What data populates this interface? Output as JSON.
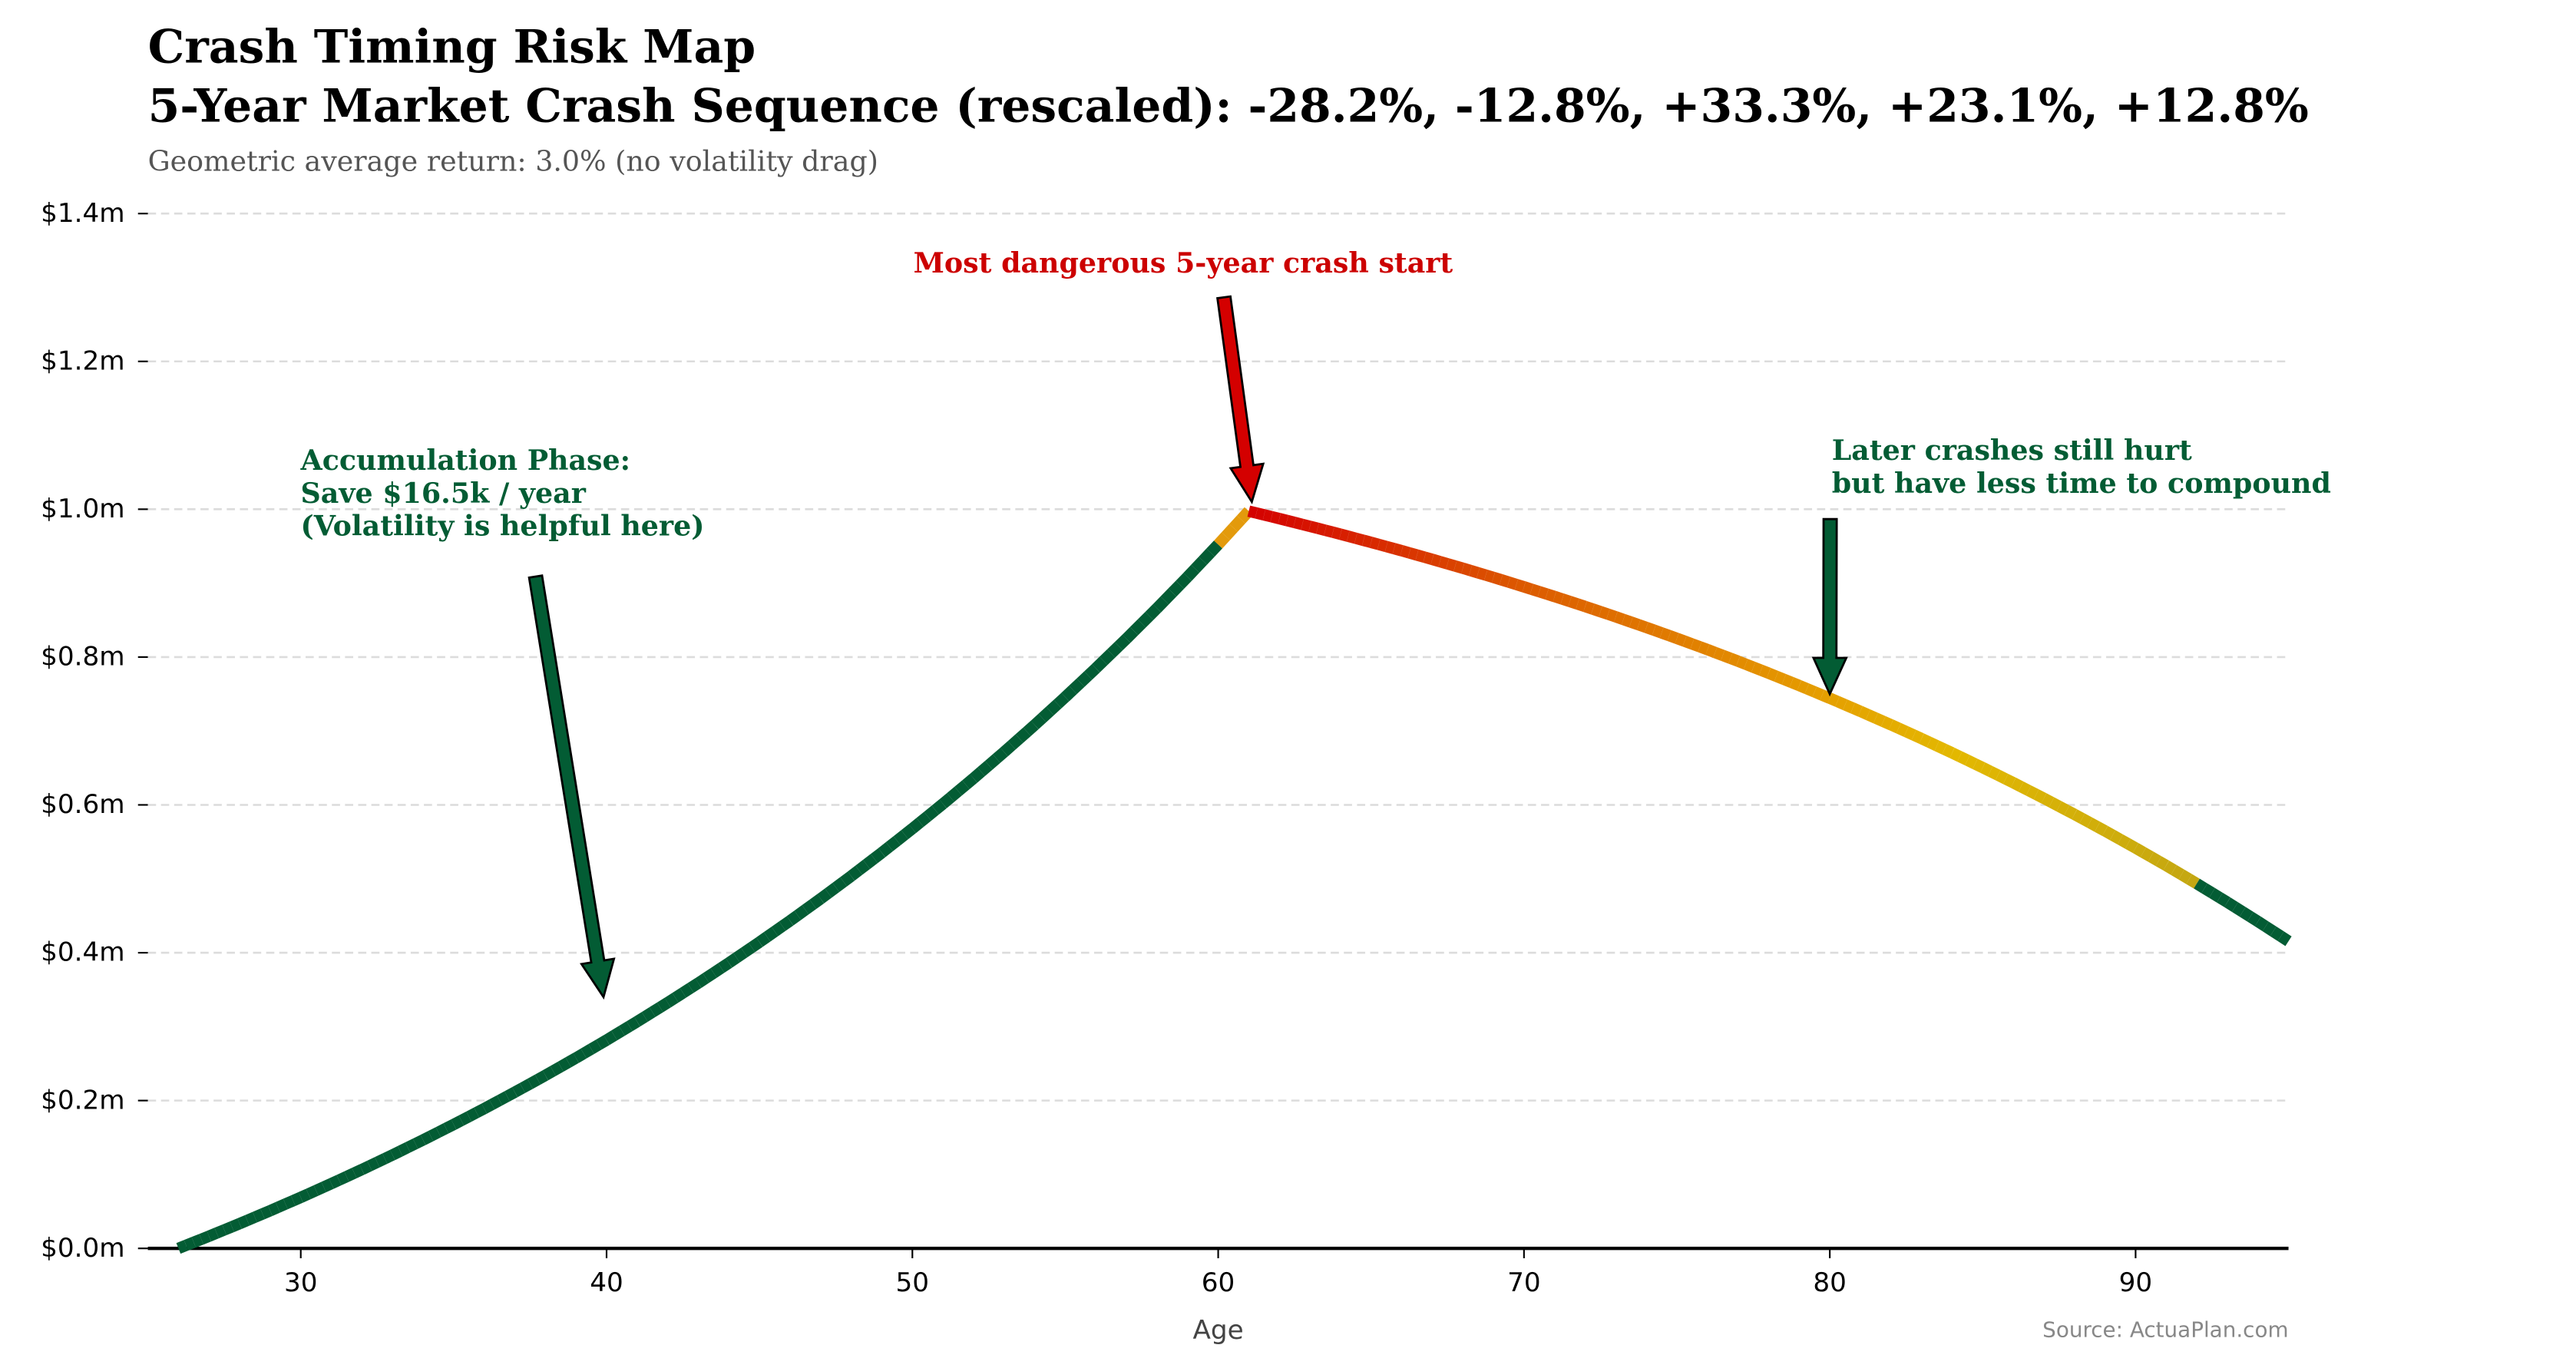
{
  "chart_data": {
    "type": "line",
    "title": "Crash Timing Risk Map",
    "subtitle": "5-Year Market Crash Sequence (rescaled): -28.2%, -12.8%, +33.3%, +23.1%, +12.8%",
    "note": "Geometric average return: 3.0% (no volatility drag)",
    "xlabel": "Age",
    "ylabel": "",
    "xlim": [
      25,
      95
    ],
    "ylim": [
      0,
      1.4
    ],
    "x_ticks": [
      30,
      40,
      50,
      60,
      70,
      80,
      90
    ],
    "y_ticks": [
      0,
      0.2,
      0.4,
      0.6,
      0.8,
      1.0,
      1.2,
      1.4
    ],
    "y_tick_labels": [
      "$0.0m",
      "$0.2m",
      "$0.4m",
      "$0.6m",
      "$0.8m",
      "$1.0m",
      "$1.2m",
      "$1.4m"
    ],
    "grid": "horizontal dashed",
    "source": "Source: ActuaPlan.com",
    "x": [
      26,
      27,
      28,
      29,
      30,
      31,
      32,
      33,
      34,
      35,
      36,
      37,
      38,
      39,
      40,
      41,
      42,
      43,
      44,
      45,
      46,
      47,
      48,
      49,
      50,
      51,
      52,
      53,
      54,
      55,
      56,
      57,
      58,
      59,
      60,
      61,
      62,
      63,
      64,
      65,
      66,
      67,
      68,
      69,
      70,
      71,
      72,
      73,
      74,
      75,
      76,
      77,
      78,
      79,
      80,
      81,
      82,
      83,
      84,
      85,
      86,
      87,
      88,
      89,
      90,
      91,
      92,
      93,
      94,
      95
    ],
    "y": [
      0,
      0.0165,
      0.0335,
      0.051,
      0.069,
      0.0876,
      0.1067,
      0.1264,
      0.1467,
      0.1676,
      0.1891,
      0.2113,
      0.2341,
      0.2576,
      0.2818,
      0.3068,
      0.3325,
      0.3589,
      0.3862,
      0.4143,
      0.4432,
      0.473,
      0.5037,
      0.5353,
      0.5679,
      0.6014,
      0.6359,
      0.6715,
      0.7081,
      0.7459,
      0.7848,
      0.8248,
      0.866,
      0.9085,
      0.9523,
      0.9974,
      0.9873,
      0.9769,
      0.9662,
      0.9552,
      0.9439,
      0.9322,
      0.9202,
      0.9078,
      0.895,
      0.8819,
      0.8684,
      0.8545,
      0.8401,
      0.8253,
      0.8101,
      0.7944,
      0.7782,
      0.7615,
      0.7443,
      0.7266,
      0.7084,
      0.6897,
      0.6704,
      0.6505,
      0.63,
      0.6089,
      0.5872,
      0.5648,
      0.5417,
      0.518,
      0.4935,
      0.4683,
      0.4423,
      0.4156
    ],
    "risk_color_stops": [
      {
        "age": 26,
        "color": "#035c34"
      },
      {
        "age": 60,
        "color": "#035c34"
      },
      {
        "age": 60.01,
        "color": "#e39a0c"
      },
      {
        "age": 61,
        "color": "#e39a0c"
      },
      {
        "age": 61.01,
        "color": "#d40000"
      },
      {
        "age": 70,
        "color": "#dc5a00"
      },
      {
        "age": 80,
        "color": "#e5a000"
      },
      {
        "age": 84,
        "color": "#e3b800"
      },
      {
        "age": 92,
        "color": "#c4a712"
      },
      {
        "age": 92.01,
        "color": "#035c34"
      },
      {
        "age": 95,
        "color": "#035c34"
      }
    ],
    "annotations": [
      {
        "lines": [
          "Accumulation Phase:",
          "Save $16.5k / year",
          "(Volatility is helpful here)"
        ],
        "color": "#035c34",
        "target": [
          39.9,
          0.34
        ]
      },
      {
        "lines": [
          "Most dangerous 5-year crash start"
        ],
        "color": "#cc0000",
        "target": [
          61.1,
          1.01
        ]
      },
      {
        "lines": [
          "Later crashes still hurt",
          "but have less time to compound"
        ],
        "color": "#035c34",
        "target": [
          80,
          0.75
        ]
      }
    ]
  }
}
